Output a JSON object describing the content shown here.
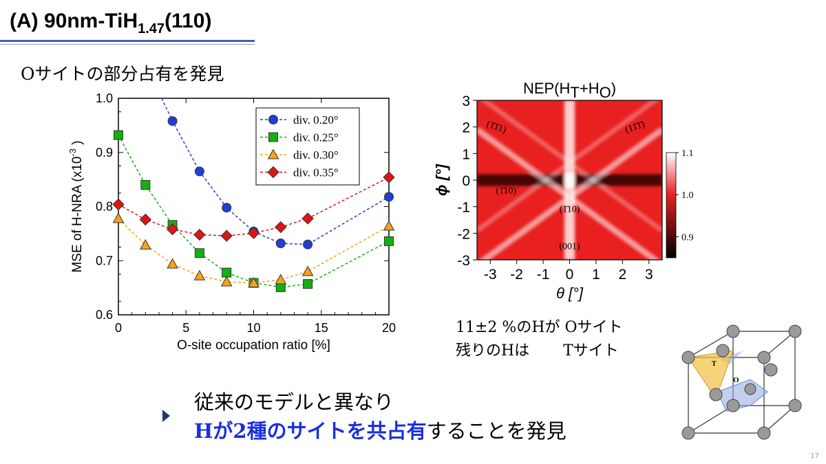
{
  "slide": {
    "title_prefix": "(A) 90nm-TiH",
    "title_sub": "1.47",
    "title_suffix": "(110)",
    "subtitle": "Oサイトの部分占有を発見",
    "result_line1": "11±2 %のHが Oサイト",
    "result_line2": "残りのHは       Tサイト",
    "conclusion_line1": "従来のモデルと異なり",
    "conclusion_highlight": "Hが2種のサイトを共占有",
    "conclusion_rest": "することを発見",
    "page_number": "17"
  },
  "chart_data": [
    {
      "type": "line",
      "xlabel": "O-site occupation ratio [%]",
      "ylabel": "MSE of H-NRA (x10",
      "ylabel_exp": "-3",
      "ylabel_close": ")",
      "xlim": [
        0,
        20
      ],
      "ylim": [
        0.6,
        1.0
      ],
      "xticks": [
        "0",
        "5",
        "10",
        "15",
        "20"
      ],
      "yticks": [
        "0.6",
        "0.7",
        "0.8",
        "0.9",
        "1.0"
      ],
      "legend_position": "top-right",
      "x": [
        0,
        2,
        4,
        6,
        8,
        10,
        12,
        14,
        20
      ],
      "series": [
        {
          "name": "div. 0.20°",
          "color": "#1f3fd6",
          "marker": "circle",
          "values": [
            null,
            null,
            0.958,
            0.865,
            0.798,
            0.754,
            0.732,
            0.73,
            0.818
          ]
        },
        {
          "name": "div. 0.25°",
          "color": "#12b012",
          "marker": "square",
          "values": [
            0.932,
            0.84,
            0.766,
            0.714,
            0.678,
            0.659,
            0.651,
            0.657,
            0.736
          ]
        },
        {
          "name": "div. 0.30°",
          "color": "#f5a31a",
          "marker": "triangle",
          "values": [
            0.778,
            0.729,
            0.694,
            0.672,
            0.661,
            0.659,
            0.665,
            0.68,
            0.764
          ]
        },
        {
          "name": "div. 0.35°",
          "color": "#e11414",
          "marker": "diamond",
          "values": [
            0.804,
            0.776,
            0.758,
            0.748,
            0.746,
            0.751,
            0.762,
            0.778,
            0.854
          ]
        }
      ]
    },
    {
      "type": "heatmap",
      "title": "NEP(H",
      "title_sub1": "T",
      "title_mid": "+H",
      "title_sub2": "O",
      "title_end": ")",
      "xlabel": "θ [°]",
      "ylabel": "ϕ [°]",
      "xlim": [
        -3.5,
        3.5
      ],
      "ylim": [
        -3,
        3
      ],
      "xticks": [
        "-3",
        "-2",
        "-1",
        "0",
        "1",
        "2",
        "3"
      ],
      "yticks": [
        "3",
        "2",
        "1",
        "0",
        "-1",
        "-2",
        "-3"
      ],
      "colorbar_range": [
        0.85,
        1.1
      ],
      "colorbar_ticks": [
        "1.1",
        "1.0",
        "0.9"
      ],
      "annotations": [
        "(1̄1̄1)",
        "(11̄1̄)",
        "(1̄10)",
        "(1̄10)",
        "(001)"
      ],
      "colors": {
        "low": "#000000",
        "mid": "#e82020",
        "high": "#ffffff"
      }
    }
  ]
}
